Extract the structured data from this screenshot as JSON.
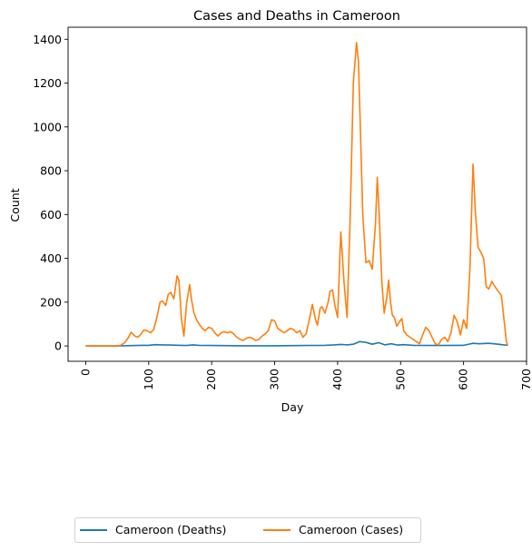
{
  "chart_data": {
    "type": "line",
    "title": "Cases and Deaths in Cameroon",
    "xlabel": "Day",
    "ylabel": "Count",
    "xlim": [
      -28,
      700
    ],
    "ylim": [
      -70,
      1455
    ],
    "xticks": [
      0,
      100,
      200,
      300,
      400,
      500,
      600,
      700
    ],
    "yticks": [
      0,
      200,
      400,
      600,
      800,
      1000,
      1200,
      1400
    ],
    "grid": false,
    "legend_position": "below chart",
    "series": [
      {
        "name": "Cameroon (Deaths)",
        "color": "#1f77b4",
        "x": [
          0,
          50,
          60,
          80,
          90,
          100,
          110,
          120,
          135,
          150,
          160,
          170,
          180,
          200,
          250,
          300,
          350,
          380,
          395,
          405,
          415,
          425,
          435,
          445,
          455,
          465,
          475,
          485,
          495,
          505,
          520,
          560,
          600,
          615,
          625,
          640,
          655,
          670
        ],
        "y": [
          0,
          0,
          1,
          2,
          3,
          3,
          6,
          5,
          4,
          3,
          2,
          5,
          3,
          2,
          1,
          1,
          2,
          3,
          5,
          7,
          5,
          8,
          20,
          16,
          8,
          15,
          5,
          10,
          4,
          6,
          3,
          2,
          3,
          12,
          10,
          12,
          8,
          3
        ]
      },
      {
        "name": "Cameroon (Cases)",
        "color": "#ff7f0e",
        "x": [
          0,
          40,
          55,
          62,
          68,
          72,
          78,
          83,
          88,
          92,
          97,
          103,
          108,
          113,
          118,
          122,
          127,
          131,
          135,
          140,
          145,
          148,
          152,
          156,
          160,
          165,
          168,
          172,
          176,
          180,
          185,
          190,
          195,
          200,
          205,
          210,
          215,
          220,
          225,
          230,
          235,
          240,
          245,
          250,
          255,
          260,
          265,
          270,
          275,
          280,
          285,
          290,
          295,
          300,
          305,
          310,
          315,
          320,
          325,
          330,
          335,
          340,
          345,
          350,
          355,
          360,
          365,
          368,
          372,
          375,
          380,
          385,
          388,
          392,
          396,
          400,
          405,
          410,
          415,
          420,
          425,
          430,
          433,
          436,
          440,
          445,
          450,
          455,
          460,
          463,
          466,
          470,
          474,
          478,
          481,
          484,
          487,
          490,
          494,
          498,
          502,
          505,
          510,
          515,
          520,
          525,
          530,
          535,
          540,
          545,
          550,
          555,
          560,
          565,
          570,
          575,
          580,
          585,
          590,
          595,
          600,
          605,
          610,
          615,
          619,
          623,
          627,
          632,
          636,
          640,
          645,
          650,
          655,
          660,
          665,
          668,
          670
        ],
        "y": [
          0,
          0,
          2,
          15,
          40,
          62,
          45,
          40,
          55,
          72,
          70,
          60,
          75,
          130,
          200,
          205,
          185,
          235,
          245,
          215,
          320,
          300,
          120,
          45,
          190,
          280,
          210,
          150,
          120,
          100,
          80,
          70,
          85,
          80,
          60,
          45,
          60,
          65,
          60,
          65,
          55,
          40,
          30,
          25,
          35,
          40,
          35,
          25,
          30,
          45,
          55,
          70,
          120,
          115,
          80,
          70,
          60,
          70,
          80,
          75,
          60,
          70,
          40,
          55,
          120,
          190,
          120,
          95,
          170,
          180,
          150,
          200,
          250,
          255,
          180,
          130,
          520,
          300,
          130,
          600,
          1200,
          1385,
          1300,
          1000,
          600,
          380,
          390,
          350,
          550,
          770,
          600,
          300,
          150,
          220,
          300,
          200,
          140,
          130,
          90,
          110,
          125,
          70,
          50,
          40,
          30,
          20,
          10,
          50,
          85,
          70,
          40,
          10,
          5,
          30,
          40,
          20,
          60,
          140,
          110,
          50,
          120,
          80,
          350,
          830,
          600,
          450,
          430,
          400,
          270,
          260,
          295,
          270,
          250,
          230,
          100,
          20,
          3
        ]
      }
    ]
  }
}
